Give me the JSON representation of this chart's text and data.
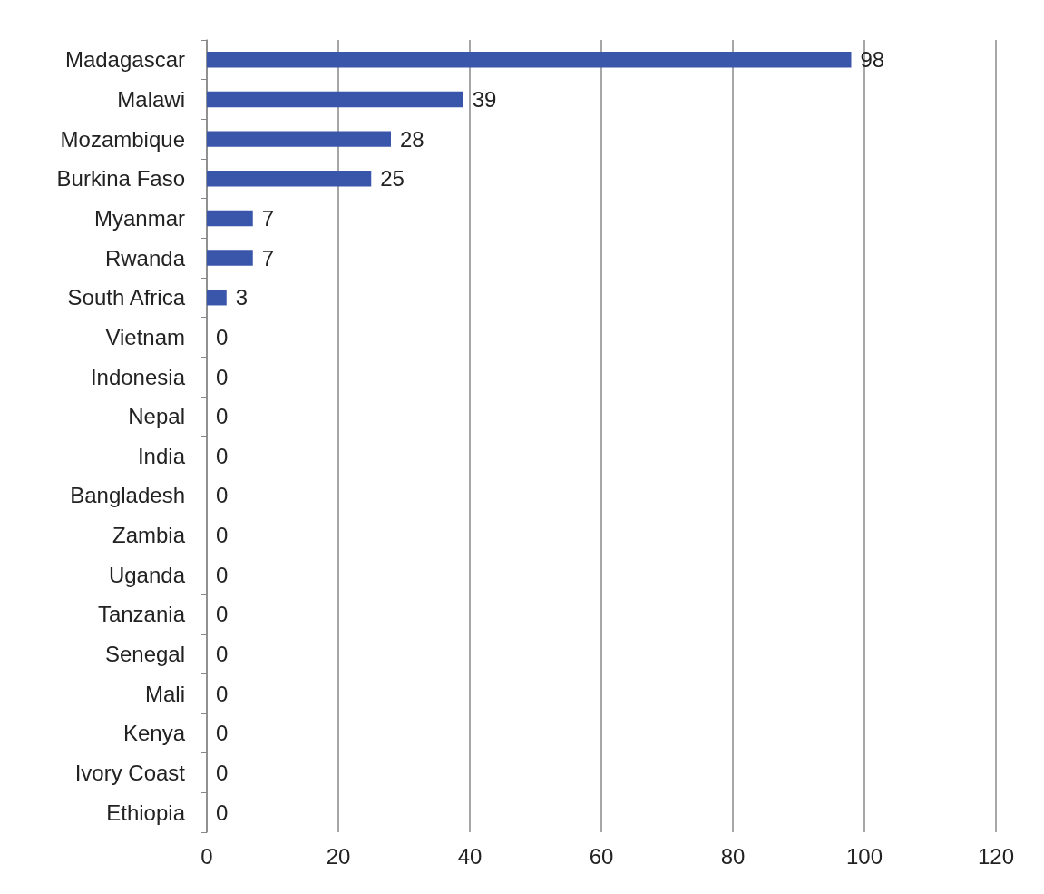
{
  "chart_data": {
    "type": "bar",
    "orientation": "horizontal",
    "categories": [
      "Madagascar",
      "Malawi",
      "Mozambique",
      "Burkina Faso",
      "Myanmar",
      "Rwanda",
      "South Africa",
      "Vietnam",
      "Indonesia",
      "Nepal",
      "India",
      "Bangladesh",
      "Zambia",
      "Uganda",
      "Tanzania",
      "Senegal",
      "Mali",
      "Kenya",
      "Ivory Coast",
      "Ethiopia"
    ],
    "values": [
      98,
      39,
      28,
      25,
      7,
      7,
      3,
      0,
      0,
      0,
      0,
      0,
      0,
      0,
      0,
      0,
      0,
      0,
      0,
      0
    ],
    "color": "#3a56ab",
    "xlim": [
      0,
      120
    ],
    "xticks": [
      0,
      20,
      40,
      60,
      80,
      100,
      120
    ],
    "grid": "x",
    "data_labels": true
  }
}
